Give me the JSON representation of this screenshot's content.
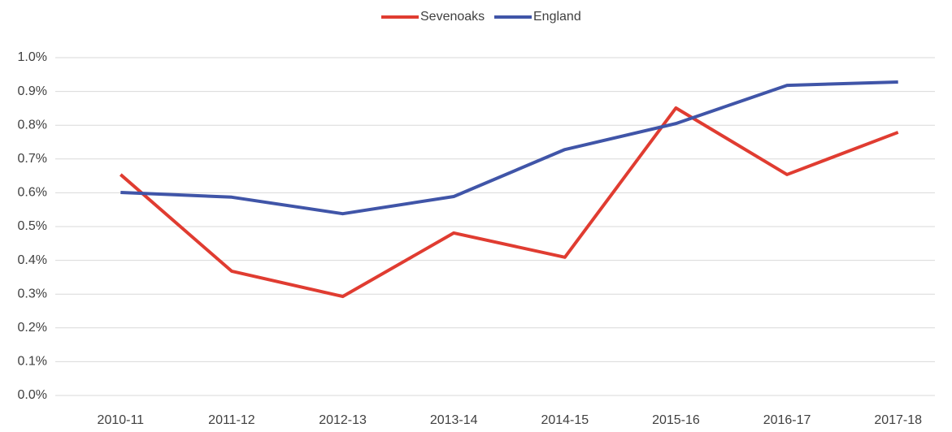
{
  "chart_data": {
    "type": "line",
    "categories": [
      "2010-11",
      "2011-12",
      "2012-13",
      "2013-14",
      "2014-15",
      "2015-16",
      "2016-17",
      "2017-18"
    ],
    "series": [
      {
        "name": "Sevenoaks",
        "color": "#e03c31",
        "values": [
          0.654,
          0.368,
          0.293,
          0.481,
          0.409,
          0.851,
          0.654,
          0.779
        ]
      },
      {
        "name": "England",
        "color": "#4055a8",
        "values": [
          0.601,
          0.587,
          0.538,
          0.589,
          0.728,
          0.805,
          0.918,
          0.928
        ]
      }
    ],
    "ylim": [
      0,
      1.0
    ],
    "yticks": [
      {
        "value": 0,
        "label": "0.0%"
      },
      {
        "value": 0.1,
        "label": "0.1%"
      },
      {
        "value": 0.2,
        "label": "0.2%"
      },
      {
        "value": 0.3,
        "label": "0.3%"
      },
      {
        "value": 0.4,
        "label": "0.4%"
      },
      {
        "value": 0.5,
        "label": "0.5%"
      },
      {
        "value": 0.6,
        "label": "0.6%"
      },
      {
        "value": 0.7,
        "label": "0.7%"
      },
      {
        "value": 0.8,
        "label": "0.8%"
      },
      {
        "value": 0.9,
        "label": "0.9%"
      },
      {
        "value": 1.0,
        "label": "1.0%"
      }
    ],
    "grid": true,
    "legend": "top"
  }
}
